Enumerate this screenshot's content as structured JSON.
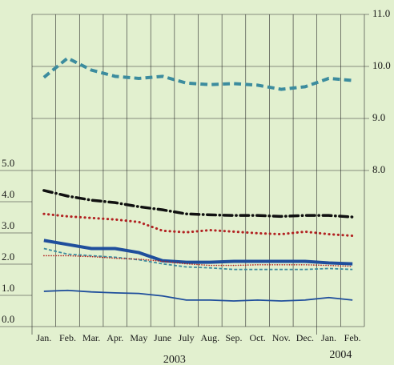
{
  "chart_data": {
    "type": "line",
    "categories": [
      "Jan.",
      "Feb.",
      "Mar.",
      "Apr.",
      "May",
      "June",
      "July",
      "Aug.",
      "Sep.",
      "Oct.",
      "Nov.",
      "Dec.",
      "Jan.",
      "Feb."
    ],
    "year_labels": [
      "2003",
      "2004"
    ],
    "ylim": [
      0,
      10
    ],
    "yticks": [
      {
        "value": 0,
        "label": "0.0"
      },
      {
        "value": 1,
        "label": "1.0"
      },
      {
        "value": 2,
        "label": "2.0"
      },
      {
        "value": 3,
        "label": "3.0"
      },
      {
        "value": 4,
        "label": "4.0"
      },
      {
        "value": 5,
        "label": "5.0"
      }
    ],
    "y2lim": [
      5,
      11
    ],
    "y2ticks": [
      {
        "value": 8,
        "label": "8.0"
      },
      {
        "value": 9,
        "label": "9.0"
      },
      {
        "value": 10,
        "label": "10.0"
      },
      {
        "value": 11,
        "label": "11.0"
      }
    ],
    "grid": true,
    "series": [
      {
        "color": "#3c8c9e",
        "style": "dashed",
        "width": 4,
        "axis": "y2",
        "values": [
          9.79,
          10.16,
          9.93,
          9.81,
          9.77,
          9.81,
          9.68,
          9.65,
          9.67,
          9.64,
          9.56,
          9.61,
          9.77,
          9.73
        ]
      },
      {
        "color": "#111111",
        "style": "dashdot",
        "width": 3.5,
        "values": [
          4.36,
          4.18,
          4.05,
          3.97,
          3.84,
          3.74,
          3.61,
          3.58,
          3.56,
          3.56,
          3.53,
          3.56,
          3.56,
          3.51
        ]
      },
      {
        "color": "#b22222",
        "style": "dotted",
        "width": 3,
        "values": [
          3.61,
          3.53,
          3.48,
          3.43,
          3.35,
          3.07,
          3.02,
          3.09,
          3.04,
          2.99,
          2.96,
          3.04,
          2.96,
          2.91
        ]
      },
      {
        "color": "#1f4e9c",
        "style": "solid",
        "width": 4,
        "values": [
          2.76,
          2.63,
          2.5,
          2.5,
          2.37,
          2.11,
          2.06,
          2.06,
          2.09,
          2.09,
          2.09,
          2.09,
          2.04,
          2.01
        ]
      },
      {
        "color": "#3c8c9e",
        "style": "dashed",
        "width": 1.8,
        "values": [
          2.5,
          2.32,
          2.27,
          2.22,
          2.14,
          2.01,
          1.91,
          1.88,
          1.83,
          1.83,
          1.83,
          1.83,
          1.86,
          1.83
        ]
      },
      {
        "color": "#b22222",
        "style": "dotted",
        "width": 1.6,
        "values": [
          2.27,
          2.27,
          2.24,
          2.19,
          2.16,
          2.09,
          2.01,
          1.96,
          1.96,
          1.98,
          1.98,
          1.98,
          1.96,
          1.93
        ]
      },
      {
        "color": "#1f4e9c",
        "style": "solid",
        "width": 1.8,
        "values": [
          1.13,
          1.16,
          1.11,
          1.08,
          1.06,
          0.98,
          0.85,
          0.85,
          0.82,
          0.85,
          0.82,
          0.85,
          0.93,
          0.85
        ]
      }
    ]
  }
}
